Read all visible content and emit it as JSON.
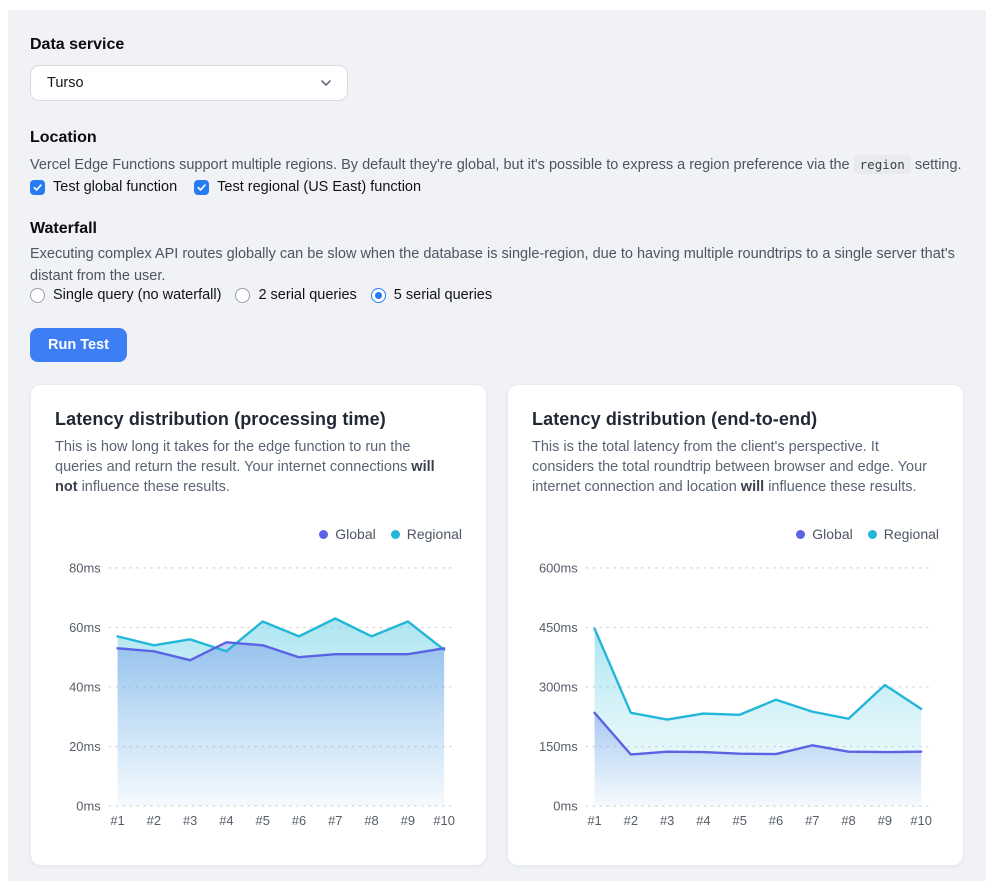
{
  "data_service": {
    "heading": "Data service",
    "selected": "Turso"
  },
  "location": {
    "heading": "Location",
    "description_before": "Vercel Edge Functions support multiple regions. By default they're global, but it's possible to express a region preference via the ",
    "code": "region",
    "description_after": " setting.",
    "checkboxes": [
      {
        "label": "Test global function",
        "checked": true
      },
      {
        "label": "Test regional (US East) function",
        "checked": true
      }
    ]
  },
  "waterfall": {
    "heading": "Waterfall",
    "description": "Executing complex API routes globally can be slow when the database is single-region, due to having multiple roundtrips to a single server that's distant from the user.",
    "radios": [
      {
        "label": "Single query (no waterfall)",
        "selected": false
      },
      {
        "label": "2 serial queries",
        "selected": false
      },
      {
        "label": "5 serial queries",
        "selected": true
      }
    ]
  },
  "run_button_label": "Run Test",
  "colors": {
    "accent_blue": "#2679f5",
    "button_blue": "#3d7ef5",
    "global_series": "#5b63e4",
    "regional_series": "#22b6d8",
    "panel_bg": "#f0f2f5"
  },
  "chart_data": [
    {
      "type": "area",
      "title": "Latency distribution (processing time)",
      "description_parts": [
        {
          "text": "This is how long it takes for the edge function to run the queries and return the result. Your internet connections ",
          "bold": false
        },
        {
          "text": "will not",
          "bold": true
        },
        {
          "text": " influence these results.",
          "bold": false
        }
      ],
      "x": [
        "#1",
        "#2",
        "#3",
        "#4",
        "#5",
        "#6",
        "#7",
        "#8",
        "#9",
        "#10"
      ],
      "series": [
        {
          "name": "Global",
          "color": "#5b63e4",
          "fill": "#6f93e8",
          "values": [
            53,
            52,
            49,
            55,
            54,
            50,
            51,
            51,
            51,
            53
          ]
        },
        {
          "name": "Regional",
          "color": "#22b6d8",
          "fill": "#49c6e0",
          "values": [
            57,
            54,
            56,
            52,
            62,
            57,
            63,
            57,
            62,
            52.5
          ]
        }
      ],
      "ylim": [
        0,
        80
      ],
      "yticks": [
        0,
        20,
        40,
        60,
        80
      ],
      "ytick_labels": [
        "0ms",
        "20ms",
        "40ms",
        "60ms",
        "80ms"
      ],
      "grid": "dashed",
      "legend_position": "top-right"
    },
    {
      "type": "area",
      "title": "Latency distribution (end-to-end)",
      "description_parts": [
        {
          "text": "This is the total latency from the client's perspective. It considers the total roundtrip between browser and edge. Your internet connection and location ",
          "bold": false
        },
        {
          "text": "will",
          "bold": true
        },
        {
          "text": " influence these results.",
          "bold": false
        }
      ],
      "x": [
        "#1",
        "#2",
        "#3",
        "#4",
        "#5",
        "#6",
        "#7",
        "#8",
        "#9",
        "#10"
      ],
      "series": [
        {
          "name": "Global",
          "color": "#5b63e4",
          "fill": "#6f93e8",
          "values": [
            235,
            130,
            137,
            136,
            132,
            131,
            153,
            137,
            136,
            137
          ]
        },
        {
          "name": "Regional",
          "color": "#22b6d8",
          "fill": "#49c6e0",
          "values": [
            447,
            235,
            218,
            233,
            230,
            268,
            238,
            220,
            305,
            245
          ]
        }
      ],
      "ylim": [
        0,
        600
      ],
      "yticks": [
        0,
        150,
        300,
        450,
        600
      ],
      "ytick_labels": [
        "0ms",
        "150ms",
        "300ms",
        "450ms",
        "600ms"
      ],
      "grid": "dashed",
      "legend_position": "top-right"
    }
  ]
}
